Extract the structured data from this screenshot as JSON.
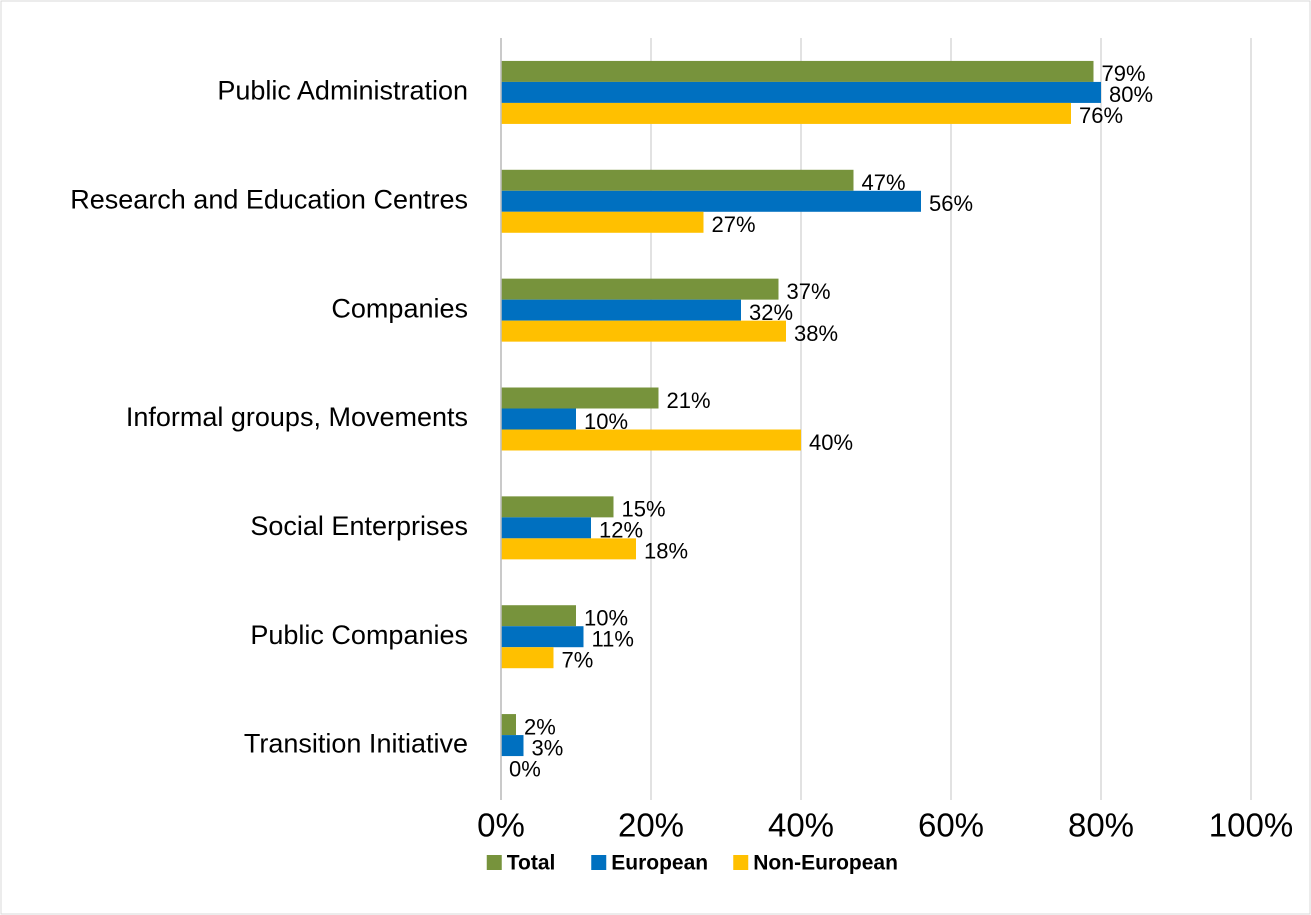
{
  "chart_data": {
    "type": "bar",
    "orientation": "horizontal",
    "categories": [
      "Public Administration",
      "Research and Education Centres",
      "Companies",
      "Informal groups, Movements",
      "Social Enterprises",
      "Public Companies",
      "Transition Initiative"
    ],
    "series": [
      {
        "name": "Total",
        "color": "#77933c",
        "values": [
          79,
          47,
          37,
          21,
          15,
          10,
          2
        ],
        "value_labels": [
          "79%",
          "47%",
          "37%",
          "21%",
          "15%",
          "10%",
          "2%"
        ]
      },
      {
        "name": "European",
        "color": "#0070c0",
        "values": [
          80,
          56,
          32,
          10,
          12,
          11,
          3
        ],
        "value_labels": [
          "80%",
          "56%",
          "32%",
          "10%",
          "12%",
          "11%",
          "3%"
        ]
      },
      {
        "name": "Non-European",
        "color": "#ffc000",
        "values": [
          76,
          27,
          38,
          40,
          18,
          7,
          0
        ],
        "value_labels": [
          "76%",
          "27%",
          "38%",
          "40%",
          "18%",
          "7%",
          "0%"
        ]
      }
    ],
    "xlim": [
      0,
      100
    ],
    "xticks": [
      {
        "value": 0,
        "label": "0%"
      },
      {
        "value": 20,
        "label": "20%"
      },
      {
        "value": 40,
        "label": "40%"
      },
      {
        "value": 60,
        "label": "60%"
      },
      {
        "value": 80,
        "label": "80%"
      },
      {
        "value": 100,
        "label": "100%"
      }
    ],
    "grid": true,
    "legend": "bottom"
  }
}
